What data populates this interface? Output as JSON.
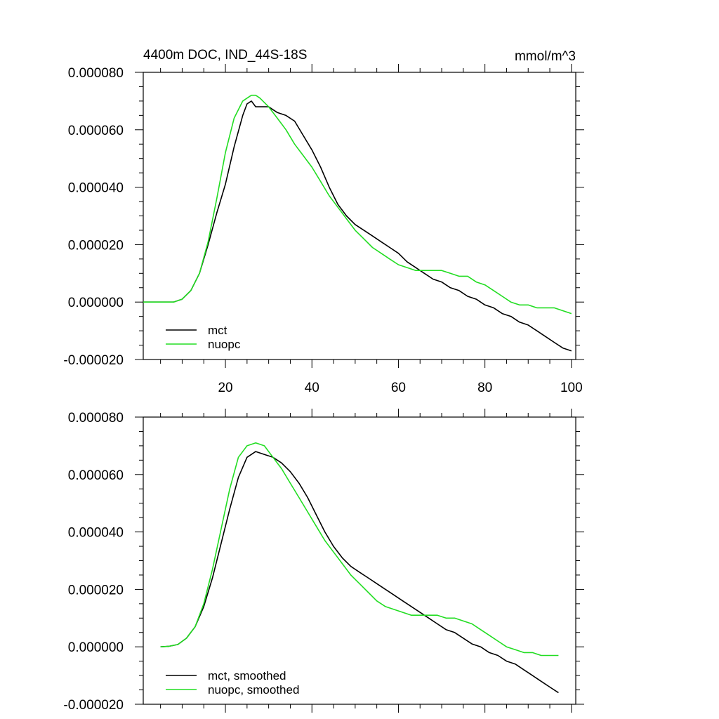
{
  "colors": {
    "mct": "#000000",
    "nuopc": "#22dd22",
    "axis": "#000000",
    "background": "#ffffff"
  },
  "chart_data": [
    {
      "type": "line",
      "title": "4400m DOC, IND_44S-18S",
      "units": "mmol/m^3",
      "xlabel": "",
      "ylabel": "",
      "xlim": [
        1,
        101
      ],
      "ylim": [
        -2e-05,
        8e-05
      ],
      "xticks": [
        20,
        40,
        60,
        80,
        100
      ],
      "xtick_labels": [
        "20",
        "40",
        "60",
        "80",
        "100"
      ],
      "yticks": [
        -2e-05,
        0,
        2e-05,
        4e-05,
        6e-05,
        8e-05
      ],
      "ytick_labels": [
        "-0.000020",
        "0.000000",
        "0.000020",
        "0.000040",
        "0.000060",
        "0.000080"
      ],
      "legend_position": "bottom-left",
      "series": [
        {
          "name": "mct",
          "color_key": "mct",
          "x": [
            1,
            5,
            8,
            10,
            12,
            14,
            16,
            18,
            20,
            22,
            24,
            25,
            26,
            27,
            28,
            30,
            32,
            34,
            36,
            38,
            40,
            42,
            44,
            46,
            48,
            50,
            52,
            54,
            56,
            58,
            60,
            62,
            64,
            66,
            68,
            70,
            72,
            74,
            76,
            78,
            80,
            82,
            84,
            86,
            88,
            90,
            92,
            94,
            96,
            98,
            100
          ],
          "y": [
            0,
            0,
            0,
            1e-06,
            4e-06,
            1e-05,
            2e-05,
            3.1e-05,
            4.1e-05,
            5.4e-05,
            6.5e-05,
            6.9e-05,
            7e-05,
            6.8e-05,
            6.8e-05,
            6.8e-05,
            6.6e-05,
            6.5e-05,
            6.3e-05,
            5.8e-05,
            5.3e-05,
            4.7e-05,
            4e-05,
            3.4e-05,
            3e-05,
            2.7e-05,
            2.5e-05,
            2.3e-05,
            2.1e-05,
            1.9e-05,
            1.7e-05,
            1.4e-05,
            1.2e-05,
            1e-05,
            8e-06,
            7e-06,
            5e-06,
            4e-06,
            2e-06,
            1e-06,
            -1e-06,
            -2e-06,
            -4e-06,
            -5e-06,
            -7e-06,
            -8e-06,
            -1e-05,
            -1.2e-05,
            -1.4e-05,
            -1.6e-05,
            -1.7e-05
          ]
        },
        {
          "name": "nuopc",
          "color_key": "nuopc",
          "x": [
            1,
            5,
            8,
            10,
            12,
            14,
            16,
            18,
            20,
            22,
            24,
            25,
            26,
            27,
            28,
            30,
            32,
            34,
            36,
            38,
            40,
            42,
            44,
            46,
            48,
            50,
            52,
            54,
            56,
            58,
            60,
            62,
            64,
            66,
            68,
            70,
            72,
            74,
            76,
            78,
            80,
            82,
            84,
            86,
            88,
            90,
            92,
            94,
            96,
            98,
            100
          ],
          "y": [
            0,
            0,
            0,
            1e-06,
            4e-06,
            1e-05,
            2.1e-05,
            3.6e-05,
            5.2e-05,
            6.4e-05,
            7e-05,
            7.1e-05,
            7.2e-05,
            7.2e-05,
            7.1e-05,
            6.8e-05,
            6.4e-05,
            6e-05,
            5.5e-05,
            5.1e-05,
            4.7e-05,
            4.2e-05,
            3.7e-05,
            3.3e-05,
            2.9e-05,
            2.5e-05,
            2.2e-05,
            1.9e-05,
            1.7e-05,
            1.5e-05,
            1.3e-05,
            1.2e-05,
            1.1e-05,
            1.1e-05,
            1.1e-05,
            1.1e-05,
            1e-05,
            9e-06,
            9e-06,
            7e-06,
            6e-06,
            4e-06,
            2e-06,
            0.0,
            -1e-06,
            -1e-06,
            -2e-06,
            -2e-06,
            -2e-06,
            -3e-06,
            -4e-06
          ]
        }
      ]
    },
    {
      "type": "line",
      "title": "",
      "units": "",
      "xlabel": "",
      "ylabel": "",
      "xlim": [
        1,
        101
      ],
      "ylim": [
        -2e-05,
        8e-05
      ],
      "xticks": [
        20,
        40,
        60,
        80,
        100
      ],
      "xtick_labels": [],
      "yticks": [
        -2e-05,
        0,
        2e-05,
        4e-05,
        6e-05,
        8e-05
      ],
      "ytick_labels": [
        "-0.000020",
        "0.000000",
        "0.000020",
        "0.000040",
        "0.000060",
        "0.000080"
      ],
      "legend_position": "bottom-left",
      "series": [
        {
          "name": "mct, smoothed",
          "color_key": "mct",
          "x": [
            5,
            7,
            9,
            11,
            13,
            15,
            17,
            19,
            21,
            23,
            25,
            27,
            29,
            31,
            33,
            35,
            37,
            39,
            41,
            43,
            45,
            47,
            49,
            51,
            53,
            55,
            57,
            59,
            61,
            63,
            65,
            67,
            69,
            71,
            73,
            75,
            77,
            79,
            81,
            83,
            85,
            87,
            89,
            91,
            93,
            95,
            97
          ],
          "y": [
            0,
            2e-07,
            8e-07,
            3e-06,
            7e-06,
            1.4e-05,
            2.4e-05,
            3.6e-05,
            4.8e-05,
            5.9e-05,
            6.6e-05,
            6.8e-05,
            6.7e-05,
            6.6e-05,
            6.4e-05,
            6.1e-05,
            5.7e-05,
            5.2e-05,
            4.6e-05,
            4e-05,
            3.5e-05,
            3.1e-05,
            2.8e-05,
            2.6e-05,
            2.4e-05,
            2.2e-05,
            2e-05,
            1.8e-05,
            1.6e-05,
            1.4e-05,
            1.2e-05,
            1e-05,
            8e-06,
            6e-06,
            5e-06,
            3e-06,
            1e-06,
            0,
            -2e-06,
            -3e-06,
            -5e-06,
            -6e-06,
            -8e-06,
            -1e-05,
            -1.2e-05,
            -1.4e-05,
            -1.6e-05
          ]
        },
        {
          "name": "nuopc, smoothed",
          "color_key": "nuopc",
          "x": [
            5,
            7,
            9,
            11,
            13,
            15,
            17,
            19,
            21,
            23,
            25,
            27,
            29,
            31,
            33,
            35,
            37,
            39,
            41,
            43,
            45,
            47,
            49,
            51,
            53,
            55,
            57,
            59,
            61,
            63,
            65,
            67,
            69,
            71,
            73,
            75,
            77,
            79,
            81,
            83,
            85,
            87,
            89,
            91,
            93,
            95,
            97
          ],
          "y": [
            0,
            2e-07,
            8e-07,
            3e-06,
            7e-06,
            1.5e-05,
            2.7e-05,
            4.1e-05,
            5.5e-05,
            6.6e-05,
            7e-05,
            7.1e-05,
            7e-05,
            6.6e-05,
            6.2e-05,
            5.7e-05,
            5.2e-05,
            4.7e-05,
            4.2e-05,
            3.7e-05,
            3.3e-05,
            2.9e-05,
            2.5e-05,
            2.2e-05,
            1.9e-05,
            1.6e-05,
            1.4e-05,
            1.3e-05,
            1.2e-05,
            1.1e-05,
            1.1e-05,
            1.1e-05,
            1.1e-05,
            1e-05,
            1e-05,
            9e-06,
            8e-06,
            6e-06,
            4e-06,
            2e-06,
            0.0,
            -1e-06,
            -2e-06,
            -2e-06,
            -3e-06,
            -3e-06,
            -3e-06
          ]
        }
      ]
    }
  ]
}
